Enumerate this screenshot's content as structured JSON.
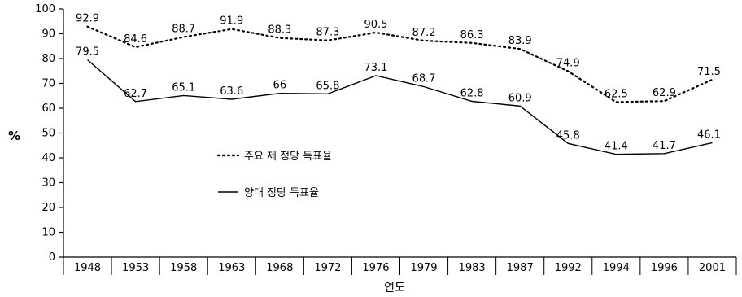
{
  "chart_data": {
    "type": "line",
    "title": "",
    "xlabel": "연도",
    "ylabel": "%",
    "categories": [
      "1948",
      "1953",
      "1958",
      "1963",
      "1968",
      "1972",
      "1976",
      "1979",
      "1983",
      "1987",
      "1992",
      "1994",
      "1996",
      "2001"
    ],
    "ylim": [
      0,
      100
    ],
    "yticks": [
      0,
      10,
      20,
      30,
      40,
      50,
      60,
      70,
      80,
      90,
      100
    ],
    "grid": false,
    "legend": "middle-left",
    "series": [
      {
        "name": "주요 제 정당 득표율",
        "style": "dotted",
        "values": [
          92.9,
          84.6,
          88.7,
          91.9,
          88.3,
          87.3,
          90.5,
          87.2,
          86.3,
          83.9,
          74.9,
          62.5,
          62.9,
          71.5
        ],
        "labels": [
          "92.9",
          "84.6",
          "88.7",
          "91.9",
          "88.3",
          "87.3",
          "90.5",
          "87.2",
          "86.3",
          "83.9",
          "74.9",
          "62.5",
          "62.9",
          "71.5"
        ]
      },
      {
        "name": "양대 정당 득표율",
        "style": "solid",
        "values": [
          79.5,
          62.7,
          65.1,
          63.6,
          66,
          65.8,
          73.1,
          68.7,
          62.8,
          60.9,
          45.8,
          41.4,
          41.7,
          46.1
        ],
        "labels": [
          "79.5",
          "62.7",
          "65.1",
          "63.6",
          "66",
          "65.8",
          "73.1",
          "68.7",
          "62.8",
          "60.9",
          "45.8",
          "41.4",
          "41.7",
          "46.1"
        ]
      }
    ]
  }
}
